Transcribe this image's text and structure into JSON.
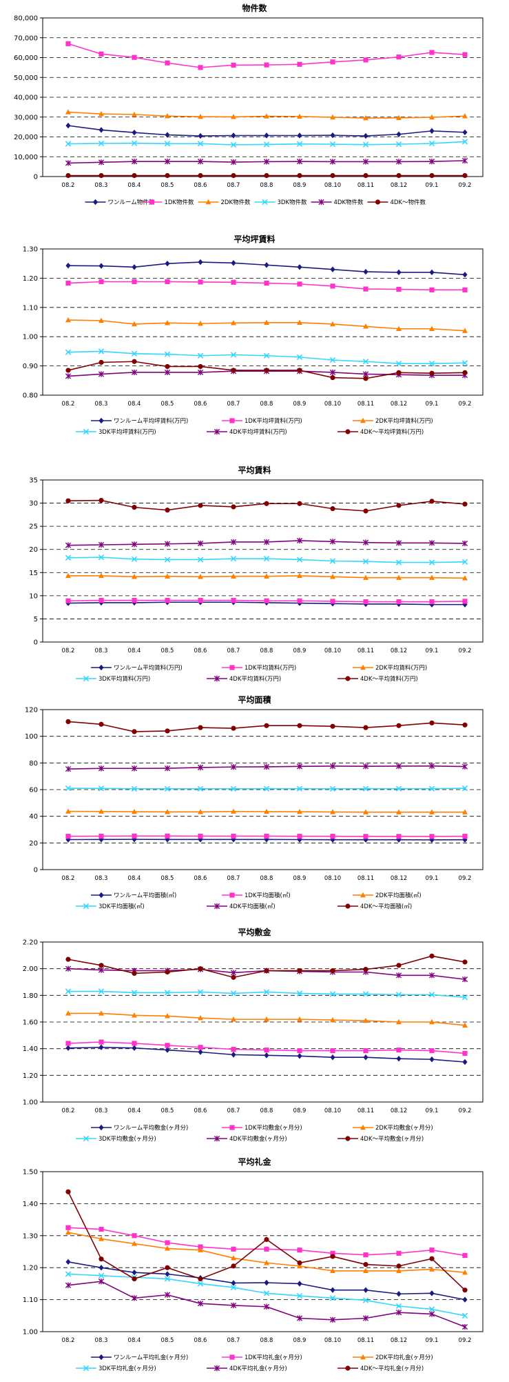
{
  "chart_data": [
    {
      "type": "line",
      "title": "物件数",
      "xlabel": "",
      "ylabel": "",
      "ylim": [
        0,
        80000
      ],
      "ytick_step": 10000,
      "ytick_format": "comma",
      "grid": true,
      "legend": "bottom",
      "categories": [
        "08.2",
        "08.3",
        "08.4",
        "08.5",
        "08.6",
        "08.7",
        "08.8",
        "08.9",
        "08.10",
        "08.11",
        "08.12",
        "09.1",
        "09.2"
      ],
      "series": [
        {
          "name": "ワンルーム物件数",
          "color": "#1a1a80",
          "marker": "diamond",
          "values": [
            25700,
            23500,
            22200,
            21000,
            20500,
            20700,
            20700,
            20700,
            20800,
            20500,
            21300,
            23000,
            22300
          ]
        },
        {
          "name": "1DK物件数",
          "color": "#ff33cc",
          "marker": "square",
          "values": [
            67000,
            61800,
            60100,
            57300,
            55000,
            56200,
            56300,
            56600,
            57800,
            58800,
            60300,
            62600,
            61500
          ]
        },
        {
          "name": "2DK物件数",
          "color": "#ff7f00",
          "marker": "triangle",
          "values": [
            32500,
            31600,
            31300,
            30500,
            30200,
            30100,
            30400,
            30300,
            29900,
            29500,
            29600,
            29900,
            30500
          ]
        },
        {
          "name": "3DK物件数",
          "color": "#33d6ff",
          "marker": "x",
          "values": [
            16500,
            16700,
            16800,
            16600,
            16600,
            16000,
            16200,
            16400,
            16300,
            16100,
            16300,
            16700,
            17600
          ]
        },
        {
          "name": "4DK物件数",
          "color": "#800080",
          "marker": "star",
          "values": [
            6800,
            7200,
            7600,
            7600,
            7600,
            7300,
            7500,
            7600,
            7500,
            7500,
            7500,
            7600,
            8000
          ]
        },
        {
          "name": "4DK～物件数",
          "color": "#800000",
          "marker": "circle",
          "values": [
            500,
            500,
            500,
            500,
            500,
            500,
            500,
            500,
            500,
            500,
            500,
            500,
            500
          ]
        }
      ]
    },
    {
      "type": "line",
      "title": "平均坪賃料",
      "xlabel": "",
      "ylabel": "",
      "ylim": [
        0.8,
        1.3
      ],
      "ytick_step": 0.1,
      "ytick_format": "2dp",
      "grid": true,
      "legend": "bottom",
      "categories": [
        "08.2",
        "08.3",
        "08.4",
        "08.5",
        "08.6",
        "08.7",
        "08.8",
        "08.9",
        "08.10",
        "08.11",
        "08.12",
        "09.1",
        "09.2"
      ],
      "series": [
        {
          "name": "ワンルーム平均坪賃料(万円)",
          "color": "#1a1a80",
          "marker": "diamond",
          "values": [
            1.243,
            1.242,
            1.238,
            1.25,
            1.255,
            1.252,
            1.245,
            1.238,
            1.23,
            1.222,
            1.22,
            1.22,
            1.212
          ]
        },
        {
          "name": "1DK平均坪賃料(万円)",
          "color": "#ff33cc",
          "marker": "square",
          "values": [
            1.183,
            1.188,
            1.188,
            1.188,
            1.187,
            1.186,
            1.183,
            1.18,
            1.173,
            1.163,
            1.162,
            1.16,
            1.16
          ]
        },
        {
          "name": "2DK平均坪賃料(万円)",
          "color": "#ff7f00",
          "marker": "triangle",
          "values": [
            1.057,
            1.055,
            1.043,
            1.047,
            1.045,
            1.047,
            1.048,
            1.048,
            1.043,
            1.035,
            1.027,
            1.027,
            1.02
          ]
        },
        {
          "name": "3DK平均坪賃料(万円)",
          "color": "#33d6ff",
          "marker": "x",
          "values": [
            0.947,
            0.95,
            0.942,
            0.94,
            0.935,
            0.938,
            0.935,
            0.93,
            0.92,
            0.915,
            0.908,
            0.908,
            0.91
          ]
        },
        {
          "name": "4DK平均坪賃料(万円)",
          "color": "#800080",
          "marker": "star",
          "values": [
            0.865,
            0.872,
            0.878,
            0.878,
            0.878,
            0.882,
            0.882,
            0.882,
            0.878,
            0.872,
            0.87,
            0.868,
            0.868
          ]
        },
        {
          "name": "4DK～平均坪賃料(万円)",
          "color": "#800000",
          "marker": "circle",
          "values": [
            0.885,
            0.912,
            0.915,
            0.898,
            0.898,
            0.885,
            0.885,
            0.885,
            0.86,
            0.857,
            0.877,
            0.875,
            0.877
          ]
        }
      ]
    },
    {
      "type": "line",
      "title": "平均賃料",
      "xlabel": "",
      "ylabel": "",
      "ylim": [
        0,
        35
      ],
      "ytick_step": 5,
      "ytick_format": "int",
      "grid": true,
      "legend": "bottom",
      "categories": [
        "08.2",
        "08.3",
        "08.4",
        "08.5",
        "08.6",
        "08.7",
        "08.8",
        "08.9",
        "08.10",
        "08.11",
        "08.12",
        "09.1",
        "09.2"
      ],
      "series": [
        {
          "name": "ワンルーム平均賃料(万円)",
          "color": "#1a1a80",
          "marker": "diamond",
          "values": [
            8.4,
            8.5,
            8.5,
            8.6,
            8.6,
            8.6,
            8.5,
            8.4,
            8.3,
            8.2,
            8.2,
            8.1,
            8.1
          ]
        },
        {
          "name": "1DK平均賃料(万円)",
          "color": "#ff33cc",
          "marker": "square",
          "values": [
            8.9,
            9.0,
            9.0,
            9.0,
            9.0,
            9.0,
            8.9,
            8.9,
            8.8,
            8.7,
            8.7,
            8.7,
            8.8
          ]
        },
        {
          "name": "2DK平均賃料(万円)",
          "color": "#ff7f00",
          "marker": "triangle",
          "values": [
            14.3,
            14.3,
            14.1,
            14.2,
            14.1,
            14.2,
            14.2,
            14.3,
            14.1,
            13.9,
            13.9,
            13.9,
            13.8
          ]
        },
        {
          "name": "3DK平均賃料(万円)",
          "color": "#33d6ff",
          "marker": "x",
          "values": [
            18.2,
            18.3,
            17.9,
            17.8,
            17.8,
            18.0,
            18.0,
            17.8,
            17.5,
            17.4,
            17.2,
            17.2,
            17.3
          ]
        },
        {
          "name": "4DK平均賃料(万円)",
          "color": "#800080",
          "marker": "star",
          "values": [
            20.9,
            21.0,
            21.1,
            21.2,
            21.3,
            21.6,
            21.6,
            21.9,
            21.7,
            21.5,
            21.4,
            21.4,
            21.3
          ]
        },
        {
          "name": "4DK～平均賃料(万円)",
          "color": "#800000",
          "marker": "circle",
          "values": [
            30.5,
            30.6,
            29.1,
            28.5,
            29.5,
            29.2,
            29.9,
            29.9,
            28.8,
            28.3,
            29.5,
            30.4,
            29.8
          ]
        }
      ]
    },
    {
      "type": "line",
      "title": "平均面積",
      "xlabel": "",
      "ylabel": "",
      "ylim": [
        0,
        120
      ],
      "ytick_step": 20,
      "ytick_format": "int",
      "grid": true,
      "legend": "bottom",
      "categories": [
        "08.2",
        "08.3",
        "08.4",
        "08.5",
        "08.6",
        "08.7",
        "08.8",
        "08.9",
        "08.10",
        "08.11",
        "08.12",
        "09.1",
        "09.2"
      ],
      "series": [
        {
          "name": "ワンルーム平均面積(㎡)",
          "color": "#1a1a80",
          "marker": "diamond",
          "values": [
            22.5,
            22.6,
            22.7,
            22.6,
            22.6,
            22.6,
            22.6,
            22.5,
            22.4,
            22.4,
            22.4,
            22.3,
            22.4
          ]
        },
        {
          "name": "1DK平均面積(㎡)",
          "color": "#ff33cc",
          "marker": "square",
          "values": [
            25.0,
            25.1,
            25.2,
            25.2,
            25.1,
            25.1,
            25.1,
            25.0,
            25.0,
            24.9,
            24.9,
            24.9,
            25.0
          ]
        },
        {
          "name": "2DK平均面積(㎡)",
          "color": "#ff7f00",
          "marker": "triangle",
          "values": [
            43.7,
            43.6,
            43.4,
            43.3,
            43.3,
            43.6,
            43.5,
            43.4,
            43.2,
            43.1,
            43.1,
            43.1,
            43.1
          ]
        },
        {
          "name": "3DK平均面積(㎡)",
          "color": "#33d6ff",
          "marker": "x",
          "values": [
            61.0,
            60.9,
            60.6,
            60.6,
            60.6,
            60.6,
            60.7,
            60.7,
            60.6,
            60.7,
            60.7,
            60.7,
            61.0
          ]
        },
        {
          "name": "4DK平均面積(㎡)",
          "color": "#800080",
          "marker": "star",
          "values": [
            75.5,
            75.9,
            75.9,
            76.0,
            76.6,
            77.0,
            77.1,
            77.4,
            77.6,
            77.5,
            77.6,
            77.7,
            77.3
          ]
        },
        {
          "name": "4DK～平均面積(㎡)",
          "color": "#800000",
          "marker": "circle",
          "values": [
            111,
            109,
            103.5,
            104,
            106.5,
            106,
            108,
            108,
            107.5,
            106.5,
            108,
            110,
            108.5
          ]
        }
      ]
    },
    {
      "type": "line",
      "title": "平均敷金",
      "xlabel": "",
      "ylabel": "",
      "ylim": [
        1.0,
        2.2
      ],
      "ytick_step": 0.2,
      "ytick_format": "2dp",
      "grid": true,
      "legend": "bottom",
      "categories": [
        "08.2",
        "08.3",
        "08.4",
        "08.5",
        "08.6",
        "08.7",
        "08.8",
        "08.9",
        "08.10",
        "08.11",
        "08.12",
        "09.1",
        "09.2"
      ],
      "series": [
        {
          "name": "ワンルーム平均敷金(ヶ月分)",
          "color": "#1a1a80",
          "marker": "diamond",
          "values": [
            1.405,
            1.41,
            1.405,
            1.39,
            1.375,
            1.355,
            1.35,
            1.345,
            1.335,
            1.335,
            1.325,
            1.32,
            1.3
          ]
        },
        {
          "name": "1DK平均敷金(ヶ月分)",
          "color": "#ff33cc",
          "marker": "square",
          "values": [
            1.44,
            1.45,
            1.44,
            1.425,
            1.41,
            1.395,
            1.39,
            1.385,
            1.385,
            1.385,
            1.39,
            1.385,
            1.365
          ]
        },
        {
          "name": "2DK平均敷金(ヶ月分)",
          "color": "#ff7f00",
          "marker": "triangle",
          "values": [
            1.665,
            1.665,
            1.65,
            1.645,
            1.63,
            1.62,
            1.62,
            1.62,
            1.615,
            1.61,
            1.6,
            1.6,
            1.575
          ]
        },
        {
          "name": "3DK平均敷金(ヶ月分)",
          "color": "#33d6ff",
          "marker": "x",
          "values": [
            1.83,
            1.83,
            1.82,
            1.82,
            1.825,
            1.815,
            1.825,
            1.815,
            1.81,
            1.81,
            1.805,
            1.805,
            1.785
          ]
        },
        {
          "name": "4DK平均敷金(ヶ月分)",
          "color": "#800080",
          "marker": "star",
          "values": [
            2.0,
            1.99,
            1.985,
            1.985,
            1.995,
            1.97,
            1.985,
            1.98,
            1.975,
            1.975,
            1.95,
            1.95,
            1.92
          ]
        },
        {
          "name": "4DK～平均敷金(ヶ月分)",
          "color": "#800000",
          "marker": "circle",
          "values": [
            2.07,
            2.025,
            1.965,
            1.975,
            2.0,
            1.935,
            1.985,
            1.985,
            1.985,
            1.995,
            2.025,
            2.095,
            2.05
          ]
        }
      ]
    },
    {
      "type": "line",
      "title": "平均礼金",
      "xlabel": "",
      "ylabel": "",
      "ylim": [
        1.0,
        1.5
      ],
      "ytick_step": 0.1,
      "ytick_format": "2dp",
      "grid": true,
      "legend": "bottom",
      "categories": [
        "08.2",
        "08.3",
        "08.4",
        "08.5",
        "08.6",
        "08.7",
        "08.8",
        "08.9",
        "08.10",
        "08.11",
        "08.12",
        "09.1",
        "09.2"
      ],
      "series": [
        {
          "name": "ワンルーム平均礼金(ヶ月分)",
          "color": "#1a1a80",
          "marker": "diamond",
          "values": [
            1.218,
            1.2,
            1.185,
            1.18,
            1.168,
            1.152,
            1.153,
            1.15,
            1.13,
            1.13,
            1.118,
            1.12,
            1.1
          ]
        },
        {
          "name": "1DK平均礼金(ヶ月分)",
          "color": "#ff33cc",
          "marker": "square",
          "values": [
            1.325,
            1.32,
            1.3,
            1.278,
            1.265,
            1.258,
            1.258,
            1.255,
            1.245,
            1.24,
            1.245,
            1.255,
            1.238
          ]
        },
        {
          "name": "2DK平均礼金(ヶ月分)",
          "color": "#ff7f00",
          "marker": "triangle",
          "values": [
            1.31,
            1.29,
            1.275,
            1.26,
            1.255,
            1.23,
            1.215,
            1.205,
            1.19,
            1.19,
            1.19,
            1.195,
            1.185
          ]
        },
        {
          "name": "3DK平均礼金(ヶ月分)",
          "color": "#33d6ff",
          "marker": "x",
          "values": [
            1.18,
            1.175,
            1.17,
            1.165,
            1.15,
            1.138,
            1.12,
            1.112,
            1.105,
            1.098,
            1.08,
            1.07,
            1.05
          ]
        },
        {
          "name": "4DK平均礼金(ヶ月分)",
          "color": "#800080",
          "marker": "star",
          "values": [
            1.145,
            1.157,
            1.105,
            1.115,
            1.088,
            1.082,
            1.078,
            1.042,
            1.037,
            1.042,
            1.06,
            1.055,
            1.015
          ]
        },
        {
          "name": "4DK～平均礼金(ヶ月分)",
          "color": "#800000",
          "marker": "circle",
          "values": [
            1.437,
            1.227,
            1.165,
            1.2,
            1.165,
            1.205,
            1.288,
            1.215,
            1.235,
            1.21,
            1.205,
            1.228,
            1.13
          ]
        }
      ]
    }
  ]
}
